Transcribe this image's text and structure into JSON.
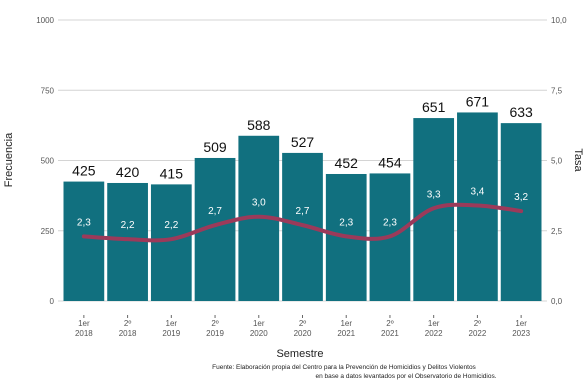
{
  "chart_data": {
    "type": "bar",
    "xlabel": "Semestre",
    "ylabel_left": "Frecuencia",
    "ylabel_right": "Tasa",
    "ylim_left": [
      0,
      1000
    ],
    "ylim_right": [
      0,
      10
    ],
    "yticks_left": [
      "0",
      "250",
      "500",
      "750",
      "1000"
    ],
    "yticks_right": [
      "0,0",
      "2,5",
      "5,0",
      "7,5",
      "10,0"
    ],
    "grid": true,
    "categories": [
      {
        "period": "1er",
        "year": "2018"
      },
      {
        "period": "2º",
        "year": "2018"
      },
      {
        "period": "1er",
        "year": "2019"
      },
      {
        "period": "2º",
        "year": "2019"
      },
      {
        "period": "1er",
        "year": "2020"
      },
      {
        "period": "2º",
        "year": "2020"
      },
      {
        "period": "1er",
        "year": "2021"
      },
      {
        "period": "2º",
        "year": "2021"
      },
      {
        "period": "1er",
        "year": "2022"
      },
      {
        "period": "2º",
        "year": "2022"
      },
      {
        "period": "1er",
        "year": "2023"
      }
    ],
    "series": [
      {
        "axis": "left",
        "chart_type": "bar",
        "color": "#11707f",
        "values": [
          425,
          420,
          415,
          509,
          588,
          527,
          452,
          454,
          651,
          671,
          633
        ],
        "value_labels": [
          "425",
          "420",
          "415",
          "509",
          "588",
          "527",
          "452",
          "454",
          "651",
          "671",
          "633"
        ]
      },
      {
        "axis": "right",
        "chart_type": "line",
        "color": "#9b3a5a",
        "values": [
          2.3,
          2.2,
          2.2,
          2.7,
          3.0,
          2.7,
          2.3,
          2.3,
          3.3,
          3.4,
          3.2
        ],
        "value_labels": [
          "2,3",
          "2,2",
          "2,2",
          "2,7",
          "3,0",
          "2,7",
          "2,3",
          "2,3",
          "3,3",
          "3,4",
          "3,2"
        ]
      }
    ],
    "source_lines": [
      "Fuente: Elaboración propia del Centro para la Prevención de Homicidios y Delitos Violentos",
      "en base a datos levantados por el Observatorio de Homicidios."
    ]
  }
}
